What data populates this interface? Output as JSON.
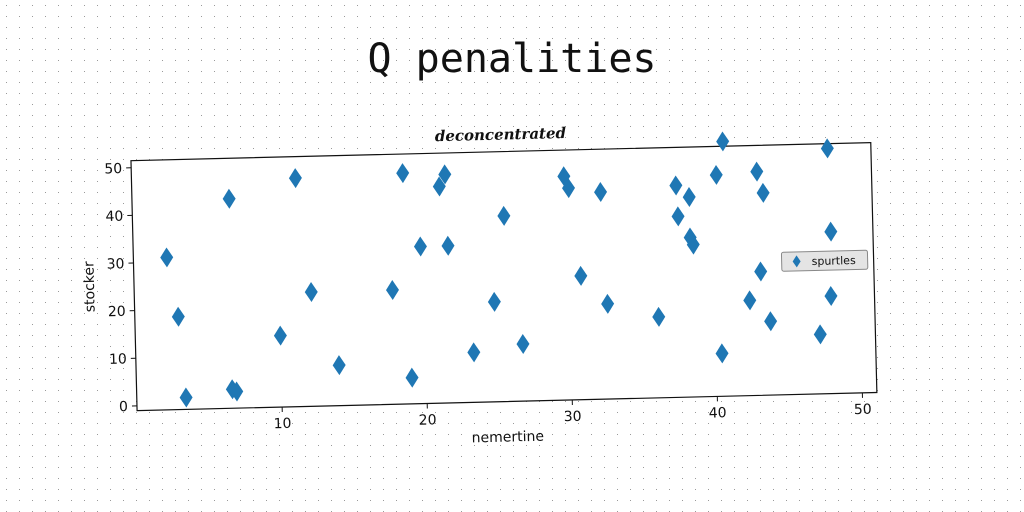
{
  "title": "Q penalities",
  "chart_data": {
    "type": "scatter",
    "title": "deconcentrated",
    "xlabel": "nemertine",
    "ylabel": "stocker",
    "xlim": [
      0,
      51
    ],
    "ylim": [
      -1,
      51.5
    ],
    "xticks": [
      10,
      20,
      30,
      40,
      50
    ],
    "yticks": [
      0,
      10,
      20,
      30,
      40,
      50
    ],
    "grid": false,
    "legend_position": "center-right",
    "marker": "diamond",
    "color": "#1f77b4",
    "series": [
      {
        "name": "spurtles",
        "points": [
          [
            2.3,
            31
          ],
          [
            3.0,
            18.5
          ],
          [
            3.4,
            1.5
          ],
          [
            6.6,
            3
          ],
          [
            6.9,
            2.5
          ],
          [
            6.7,
            43
          ],
          [
            10.0,
            14
          ],
          [
            11.3,
            47
          ],
          [
            12.2,
            23
          ],
          [
            14.0,
            7.5
          ],
          [
            17.8,
            23
          ],
          [
            18.7,
            47.5
          ],
          [
            19.0,
            4.5
          ],
          [
            19.8,
            32
          ],
          [
            21.2,
            44.5
          ],
          [
            21.6,
            47
          ],
          [
            21.7,
            32
          ],
          [
            23.3,
            9.5
          ],
          [
            24.8,
            20
          ],
          [
            25.6,
            38
          ],
          [
            26.7,
            11
          ],
          [
            29.8,
            46
          ],
          [
            30.1,
            43.5
          ],
          [
            30.8,
            25
          ],
          [
            32.3,
            42.5
          ],
          [
            32.6,
            19
          ],
          [
            36.1,
            16
          ],
          [
            37.5,
            43.5
          ],
          [
            37.6,
            37
          ],
          [
            38.4,
            41
          ],
          [
            38.4,
            32.5
          ],
          [
            38.6,
            31
          ],
          [
            40.3,
            45.5
          ],
          [
            40.4,
            8
          ],
          [
            40.8,
            52.5
          ],
          [
            42.4,
            19
          ],
          [
            43.1,
            46
          ],
          [
            43.2,
            25
          ],
          [
            43.5,
            41.5
          ],
          [
            43.8,
            14.5
          ],
          [
            47.2,
            11.5
          ],
          [
            48.0,
            19.5
          ],
          [
            48.0,
            50.5
          ],
          [
            48.1,
            33
          ]
        ]
      }
    ]
  }
}
